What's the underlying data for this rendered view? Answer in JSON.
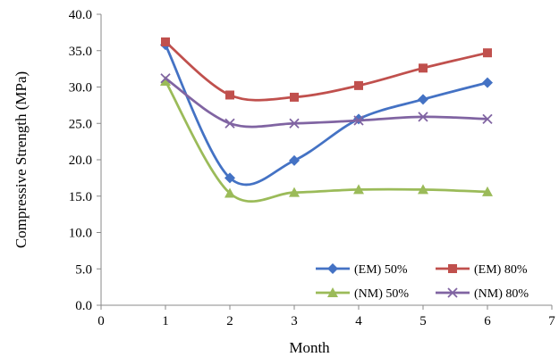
{
  "chart_data": {
    "type": "line",
    "smooth": true,
    "xlabel": "Month",
    "ylabel": "Compressive Strength (MPa)",
    "xlim": [
      0,
      7
    ],
    "ylim": [
      0,
      40
    ],
    "x_ticks": [
      "0",
      "1",
      "2",
      "3",
      "4",
      "5",
      "6",
      "7"
    ],
    "y_ticks": [
      "0.0",
      "5.0",
      "10.0",
      "15.0",
      "20.0",
      "25.0",
      "30.0",
      "35.0",
      "40.0"
    ],
    "grid": false,
    "legend_position": "bottom-right",
    "x": [
      1,
      2,
      3,
      4,
      5,
      6
    ],
    "series": [
      {
        "name": "(EM) 50%",
        "color": "#4472C4",
        "marker": "diamond",
        "values": [
          35.8,
          17.5,
          19.9,
          25.6,
          28.3,
          30.6
        ]
      },
      {
        "name": "(EM) 80%",
        "color": "#C0504D",
        "marker": "square",
        "values": [
          36.2,
          28.9,
          28.6,
          30.2,
          32.6,
          34.7
        ]
      },
      {
        "name": "(NM) 50%",
        "color": "#9BBB59",
        "marker": "triangle",
        "values": [
          30.8,
          15.4,
          15.5,
          15.9,
          15.9,
          15.6
        ]
      },
      {
        "name": "(NM) 80%",
        "color": "#8064A2",
        "marker": "x",
        "values": [
          31.2,
          25.0,
          25.0,
          25.4,
          25.9,
          25.6
        ]
      }
    ]
  }
}
